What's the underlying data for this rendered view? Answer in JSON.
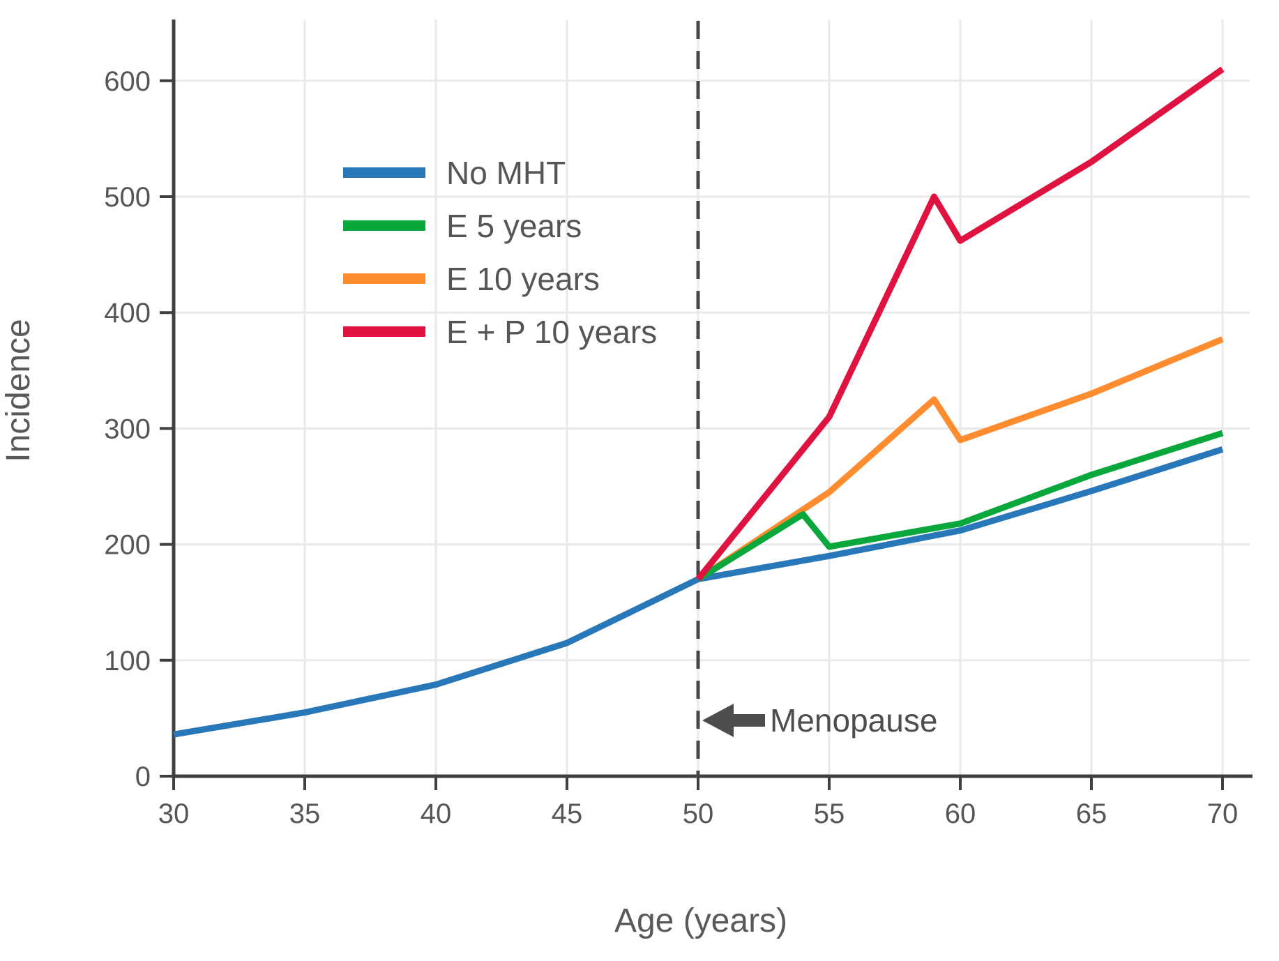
{
  "chart_data": {
    "type": "line",
    "title": "",
    "xlabel": "Age (years)",
    "ylabel": "Incidence",
    "xticks": [
      30,
      35,
      40,
      45,
      50,
      55,
      60,
      65,
      70
    ],
    "yticks": [
      0,
      100,
      200,
      300,
      400,
      500,
      600
    ],
    "xlim": [
      30,
      70
    ],
    "ylim": [
      0,
      650
    ],
    "grid": true,
    "legend_position": "upper left inside plot",
    "series": [
      {
        "name": "No MHT",
        "color": "#2878b9",
        "points": [
          [
            30,
            36
          ],
          [
            35,
            55
          ],
          [
            40,
            79
          ],
          [
            45,
            115
          ],
          [
            50,
            170
          ],
          [
            55,
            190
          ],
          [
            60,
            212
          ],
          [
            65,
            246
          ],
          [
            70,
            282
          ]
        ]
      },
      {
        "name": "E 5 years",
        "color": "#0aa83c",
        "points": [
          [
            50,
            170
          ],
          [
            54,
            226
          ],
          [
            55,
            198
          ],
          [
            60,
            218
          ],
          [
            65,
            260
          ],
          [
            70,
            296
          ]
        ]
      },
      {
        "name": "E 10 years",
        "color": "#ff8c2e",
        "points": [
          [
            50,
            170
          ],
          [
            55,
            245
          ],
          [
            59,
            325
          ],
          [
            60,
            290
          ],
          [
            65,
            330
          ],
          [
            70,
            377
          ]
        ]
      },
      {
        "name": "E + P 10 years",
        "color": "#e01240",
        "points": [
          [
            50,
            170
          ],
          [
            55,
            310
          ],
          [
            59,
            500
          ],
          [
            60,
            462
          ],
          [
            65,
            530
          ],
          [
            70,
            610
          ]
        ]
      }
    ],
    "reference_line": {
      "x": 50,
      "style": "dashed",
      "color": "#474747"
    },
    "annotation": {
      "label": "Menopause",
      "points_to_x": 50,
      "arrow_direction": "left",
      "color": "#4d4d4d"
    },
    "colors": {
      "spine": "#3f3f3f",
      "grid": "#eaeaea",
      "tick_label": "#565656",
      "axis_label": "#595959"
    }
  }
}
